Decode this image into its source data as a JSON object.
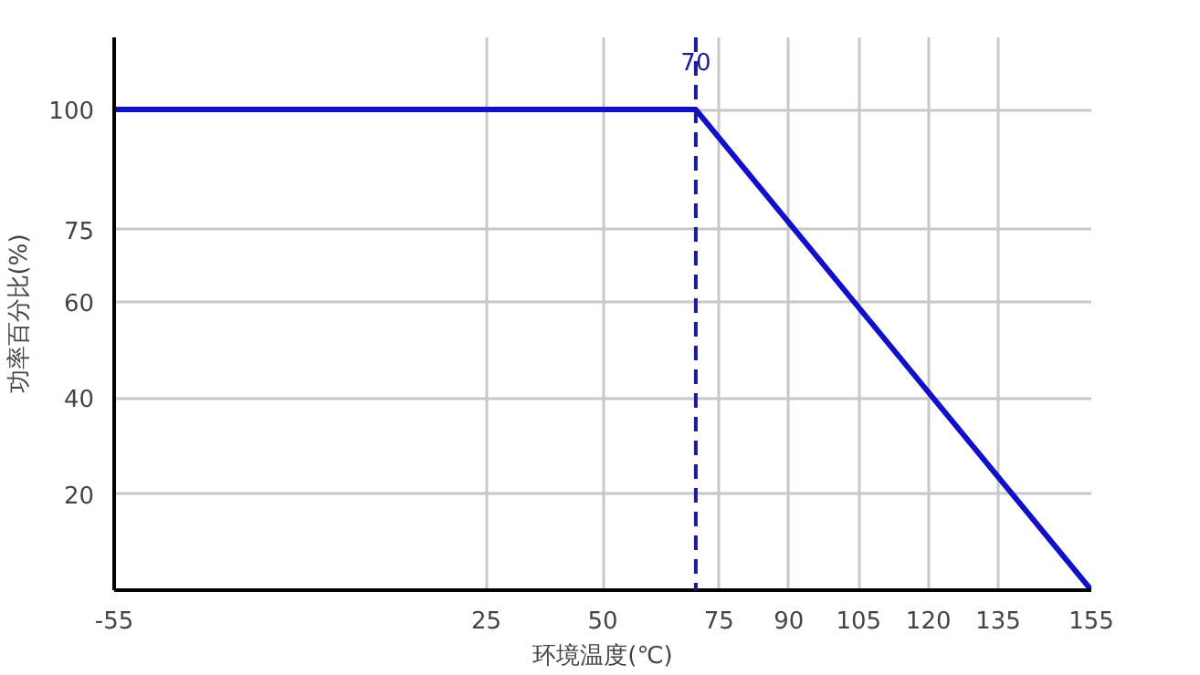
{
  "chart_data": {
    "type": "line",
    "xlabel": "环境温度(℃)",
    "ylabel": "功率百分比(%)",
    "x": [
      -55,
      70,
      155
    ],
    "series": [
      {
        "color": "#1010c8",
        "values": [
          100,
          100,
          0
        ]
      }
    ],
    "xlim": [
      -55,
      155
    ],
    "xticks": [
      {
        "value": -55,
        "label": "-55"
      },
      25,
      50,
      75,
      90,
      105,
      120,
      135,
      155
    ],
    "ylim": [
      0,
      115
    ],
    "yticks": [
      20,
      40,
      60,
      75,
      100
    ],
    "ref_lines": [
      {
        "axis": "x",
        "value": 70,
        "label": "70",
        "color": "#1a1a9a",
        "line_style": "dashed"
      }
    ],
    "grid": true
  }
}
